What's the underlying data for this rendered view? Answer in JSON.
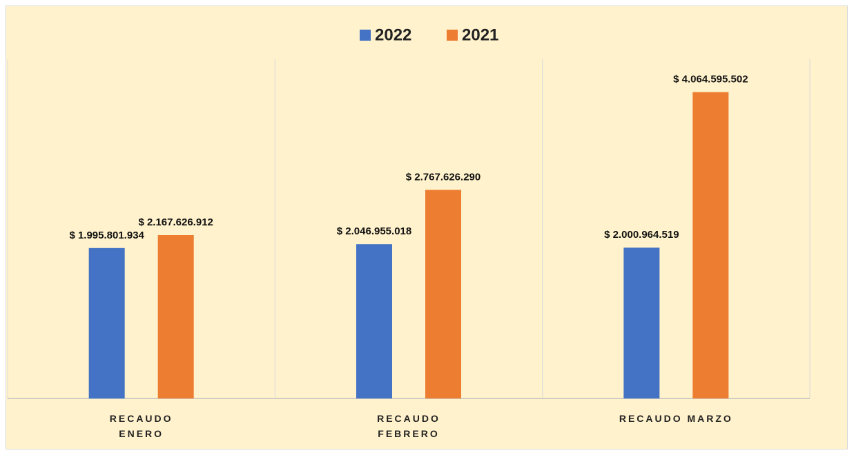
{
  "chart_data": {
    "type": "bar",
    "categories": [
      "RECAUDO ENERO",
      "RECAUDO FEBRERO",
      "RECAUDO MARZO"
    ],
    "series": [
      {
        "name": "2022",
        "color": "#4472c4",
        "values": [
          1995801934,
          2046955018,
          2000964519
        ],
        "value_labels": [
          "$ 1.995.801.934",
          "$ 2.046.955.018",
          "$ 2.000.964.519"
        ]
      },
      {
        "name": "2021",
        "color": "#ed7d31",
        "values": [
          2167626912,
          2767626290,
          4064595502
        ],
        "value_labels": [
          "$ 2.167.626.912",
          "$ 2.767.626.290",
          "$ 4.064.595.502"
        ]
      }
    ],
    "ylim": [
      0,
      4500000000
    ],
    "legend": "top"
  }
}
